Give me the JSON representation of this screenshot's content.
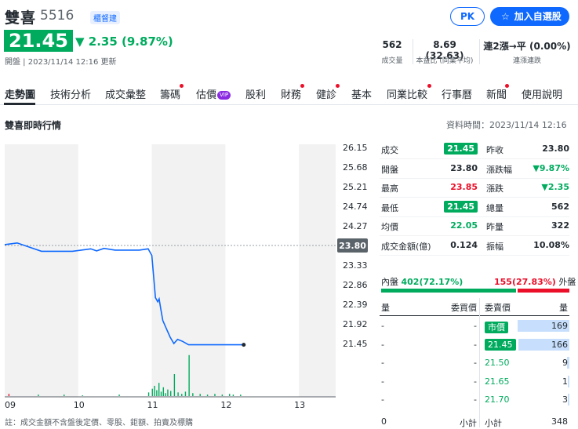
{
  "header": {
    "name": "雙喜",
    "code": "5516",
    "badge": "櫃督建",
    "pk_label": "PK",
    "add_label": "加入自選股",
    "price": "21.45",
    "change": "2.35 (9.87%)",
    "update_time": "開盤 | 2023/11/14 12:16 更新",
    "kpis": [
      {
        "value": "562",
        "label": "成交量"
      },
      {
        "value": "8.69 (32.63)",
        "label": "本益比 (同業平均)"
      },
      {
        "value": "連2漲→平 (0.00%)",
        "label": "連漲連跌"
      }
    ]
  },
  "tabs": [
    {
      "label": "走勢圖",
      "dot": false,
      "vip": false
    },
    {
      "label": "技術分析",
      "dot": false,
      "vip": false
    },
    {
      "label": "成交彙整",
      "dot": false,
      "vip": false
    },
    {
      "label": "籌碼",
      "dot": true,
      "vip": false
    },
    {
      "label": "估價",
      "dot": false,
      "vip": true,
      "vip_text": "VIP"
    },
    {
      "label": "股利",
      "dot": false,
      "vip": false
    },
    {
      "label": "財務",
      "dot": true,
      "vip": false
    },
    {
      "label": "健診",
      "dot": true,
      "vip": false
    },
    {
      "label": "基本",
      "dot": false,
      "vip": false
    },
    {
      "label": "同業比較",
      "dot": true,
      "vip": false
    },
    {
      "label": "行事曆",
      "dot": false,
      "vip": false
    },
    {
      "label": "新聞",
      "dot": true,
      "vip": false
    },
    {
      "label": "使用說明",
      "dot": false,
      "vip": false
    }
  ],
  "section": {
    "title": "雙喜即時行情",
    "data_time": "資料時間：2023/11/14 12:16"
  },
  "colors": {
    "up": "#eb0f29",
    "down": "#00ab5e",
    "line": "#0f69ff",
    "accent": "#0f69ff"
  },
  "chart_data": {
    "type": "line",
    "x_ticks": [
      "09",
      "10",
      "11",
      "12",
      "13"
    ],
    "y_ticks": [
      "26.15",
      "25.68",
      "25.21",
      "24.74",
      "24.27",
      "23.80",
      "23.33",
      "22.86",
      "22.39",
      "21.92",
      "21.45"
    ],
    "ylim": [
      21.45,
      26.15
    ],
    "reference_price": "23.80",
    "series": [
      {
        "values": [
          [
            9.0,
            23.82
          ],
          [
            9.17,
            23.86
          ],
          [
            9.5,
            23.66
          ],
          [
            9.92,
            23.66
          ],
          [
            10.17,
            23.72
          ],
          [
            10.25,
            23.67
          ],
          [
            10.35,
            23.73
          ],
          [
            10.5,
            23.69
          ],
          [
            10.83,
            23.69
          ],
          [
            10.95,
            23.72
          ],
          [
            11.0,
            23.56
          ],
          [
            11.05,
            22.55
          ],
          [
            11.08,
            22.45
          ],
          [
            11.1,
            22.52
          ],
          [
            11.12,
            22.3
          ],
          [
            11.15,
            22.0
          ],
          [
            11.2,
            21.8
          ],
          [
            11.25,
            21.6
          ],
          [
            11.3,
            21.45
          ],
          [
            11.35,
            21.55
          ],
          [
            11.42,
            21.5
          ],
          [
            11.5,
            21.42
          ],
          [
            12.0,
            21.42
          ],
          [
            12.25,
            21.42
          ]
        ]
      }
    ],
    "volume_bars": [
      {
        "x": 9.05,
        "v": 3,
        "color": "up"
      },
      {
        "x": 9.45,
        "v": 2,
        "color": "down"
      },
      {
        "x": 9.8,
        "v": 2,
        "color": "down"
      },
      {
        "x": 10.05,
        "v": 1,
        "color": "down"
      },
      {
        "x": 10.55,
        "v": 2,
        "color": "down"
      },
      {
        "x": 10.95,
        "v": 5,
        "color": "down"
      },
      {
        "x": 11.0,
        "v": 10,
        "color": "down"
      },
      {
        "x": 11.03,
        "v": 14,
        "color": "down"
      },
      {
        "x": 11.06,
        "v": 8,
        "color": "down"
      },
      {
        "x": 11.09,
        "v": 18,
        "color": "down"
      },
      {
        "x": 11.12,
        "v": 6,
        "color": "down"
      },
      {
        "x": 11.15,
        "v": 12,
        "color": "down"
      },
      {
        "x": 11.18,
        "v": 4,
        "color": "down"
      },
      {
        "x": 11.21,
        "v": 9,
        "color": "down"
      },
      {
        "x": 11.25,
        "v": 7,
        "color": "down"
      },
      {
        "x": 11.3,
        "v": 30,
        "color": "down"
      },
      {
        "x": 11.35,
        "v": 5,
        "color": "down"
      },
      {
        "x": 11.4,
        "v": 3,
        "color": "down"
      },
      {
        "x": 11.45,
        "v": 6,
        "color": "down"
      },
      {
        "x": 11.5,
        "v": 56,
        "color": "down"
      },
      {
        "x": 11.55,
        "v": 4,
        "color": "down"
      },
      {
        "x": 11.65,
        "v": 3,
        "color": "down"
      },
      {
        "x": 11.75,
        "v": 2,
        "color": "down"
      },
      {
        "x": 11.85,
        "v": 3,
        "color": "down"
      },
      {
        "x": 11.95,
        "v": 2,
        "color": "down"
      },
      {
        "x": 12.05,
        "v": 3,
        "color": "down"
      },
      {
        "x": 12.1,
        "v": 2,
        "color": "down"
      },
      {
        "x": 12.2,
        "v": 2,
        "color": "down"
      }
    ]
  },
  "stats": {
    "left": [
      {
        "label": "成交",
        "value": "21.45",
        "style": "pill"
      },
      {
        "label": "開盤",
        "value": "23.80",
        "style": "plain"
      },
      {
        "label": "最高",
        "value": "23.85",
        "style": "red"
      },
      {
        "label": "最低",
        "value": "21.45",
        "style": "pill"
      },
      {
        "label": "均價",
        "value": "22.05",
        "style": "green"
      },
      {
        "label": "成交金額(億)",
        "value": "0.124",
        "style": "plain"
      }
    ],
    "right": [
      {
        "label": "昨收",
        "value": "23.80",
        "style": "plain"
      },
      {
        "label": "漲跌幅",
        "value": "▼9.87%",
        "style": "green"
      },
      {
        "label": "漲跌",
        "value": "▼2.35",
        "style": "green"
      },
      {
        "label": "總量",
        "value": "562",
        "style": "plain"
      },
      {
        "label": "昨量",
        "value": "322",
        "style": "plain"
      },
      {
        "label": "振幅",
        "value": "10.08%",
        "style": "plain"
      }
    ]
  },
  "inout": {
    "in_label": "內盤",
    "in_value": "402(72.17%)",
    "out_value": "155(27.83%)",
    "out_label": "外盤",
    "in_ratio": 0.7217
  },
  "orderbook": {
    "headers": [
      "量",
      "委買價",
      "委賣價",
      "量"
    ],
    "rows": [
      {
        "bid_vol": "-",
        "bid_price": "-",
        "ask_price": "市價",
        "ask_vol": "169",
        "ask_style": "pill",
        "ratio": 1.0
      },
      {
        "bid_vol": "-",
        "bid_price": "-",
        "ask_price": "21.45",
        "ask_vol": "166",
        "ask_style": "pill",
        "ratio": 0.98
      },
      {
        "bid_vol": "-",
        "bid_price": "-",
        "ask_price": "21.50",
        "ask_vol": "9",
        "ask_style": "green",
        "ratio": 0.05
      },
      {
        "bid_vol": "-",
        "bid_price": "-",
        "ask_price": "21.65",
        "ask_vol": "1",
        "ask_style": "green",
        "ratio": 0.01
      },
      {
        "bid_vol": "-",
        "bid_price": "-",
        "ask_price": "21.70",
        "ask_vol": "3",
        "ask_style": "green",
        "ratio": 0.02
      }
    ],
    "totals": {
      "bid_vol": "0",
      "bid_label": "小計",
      "ask_label": "小計",
      "ask_vol": "348"
    }
  },
  "footer_note": "註：成交金額不含盤後定價、零股、鉅額、拍賣及標購"
}
